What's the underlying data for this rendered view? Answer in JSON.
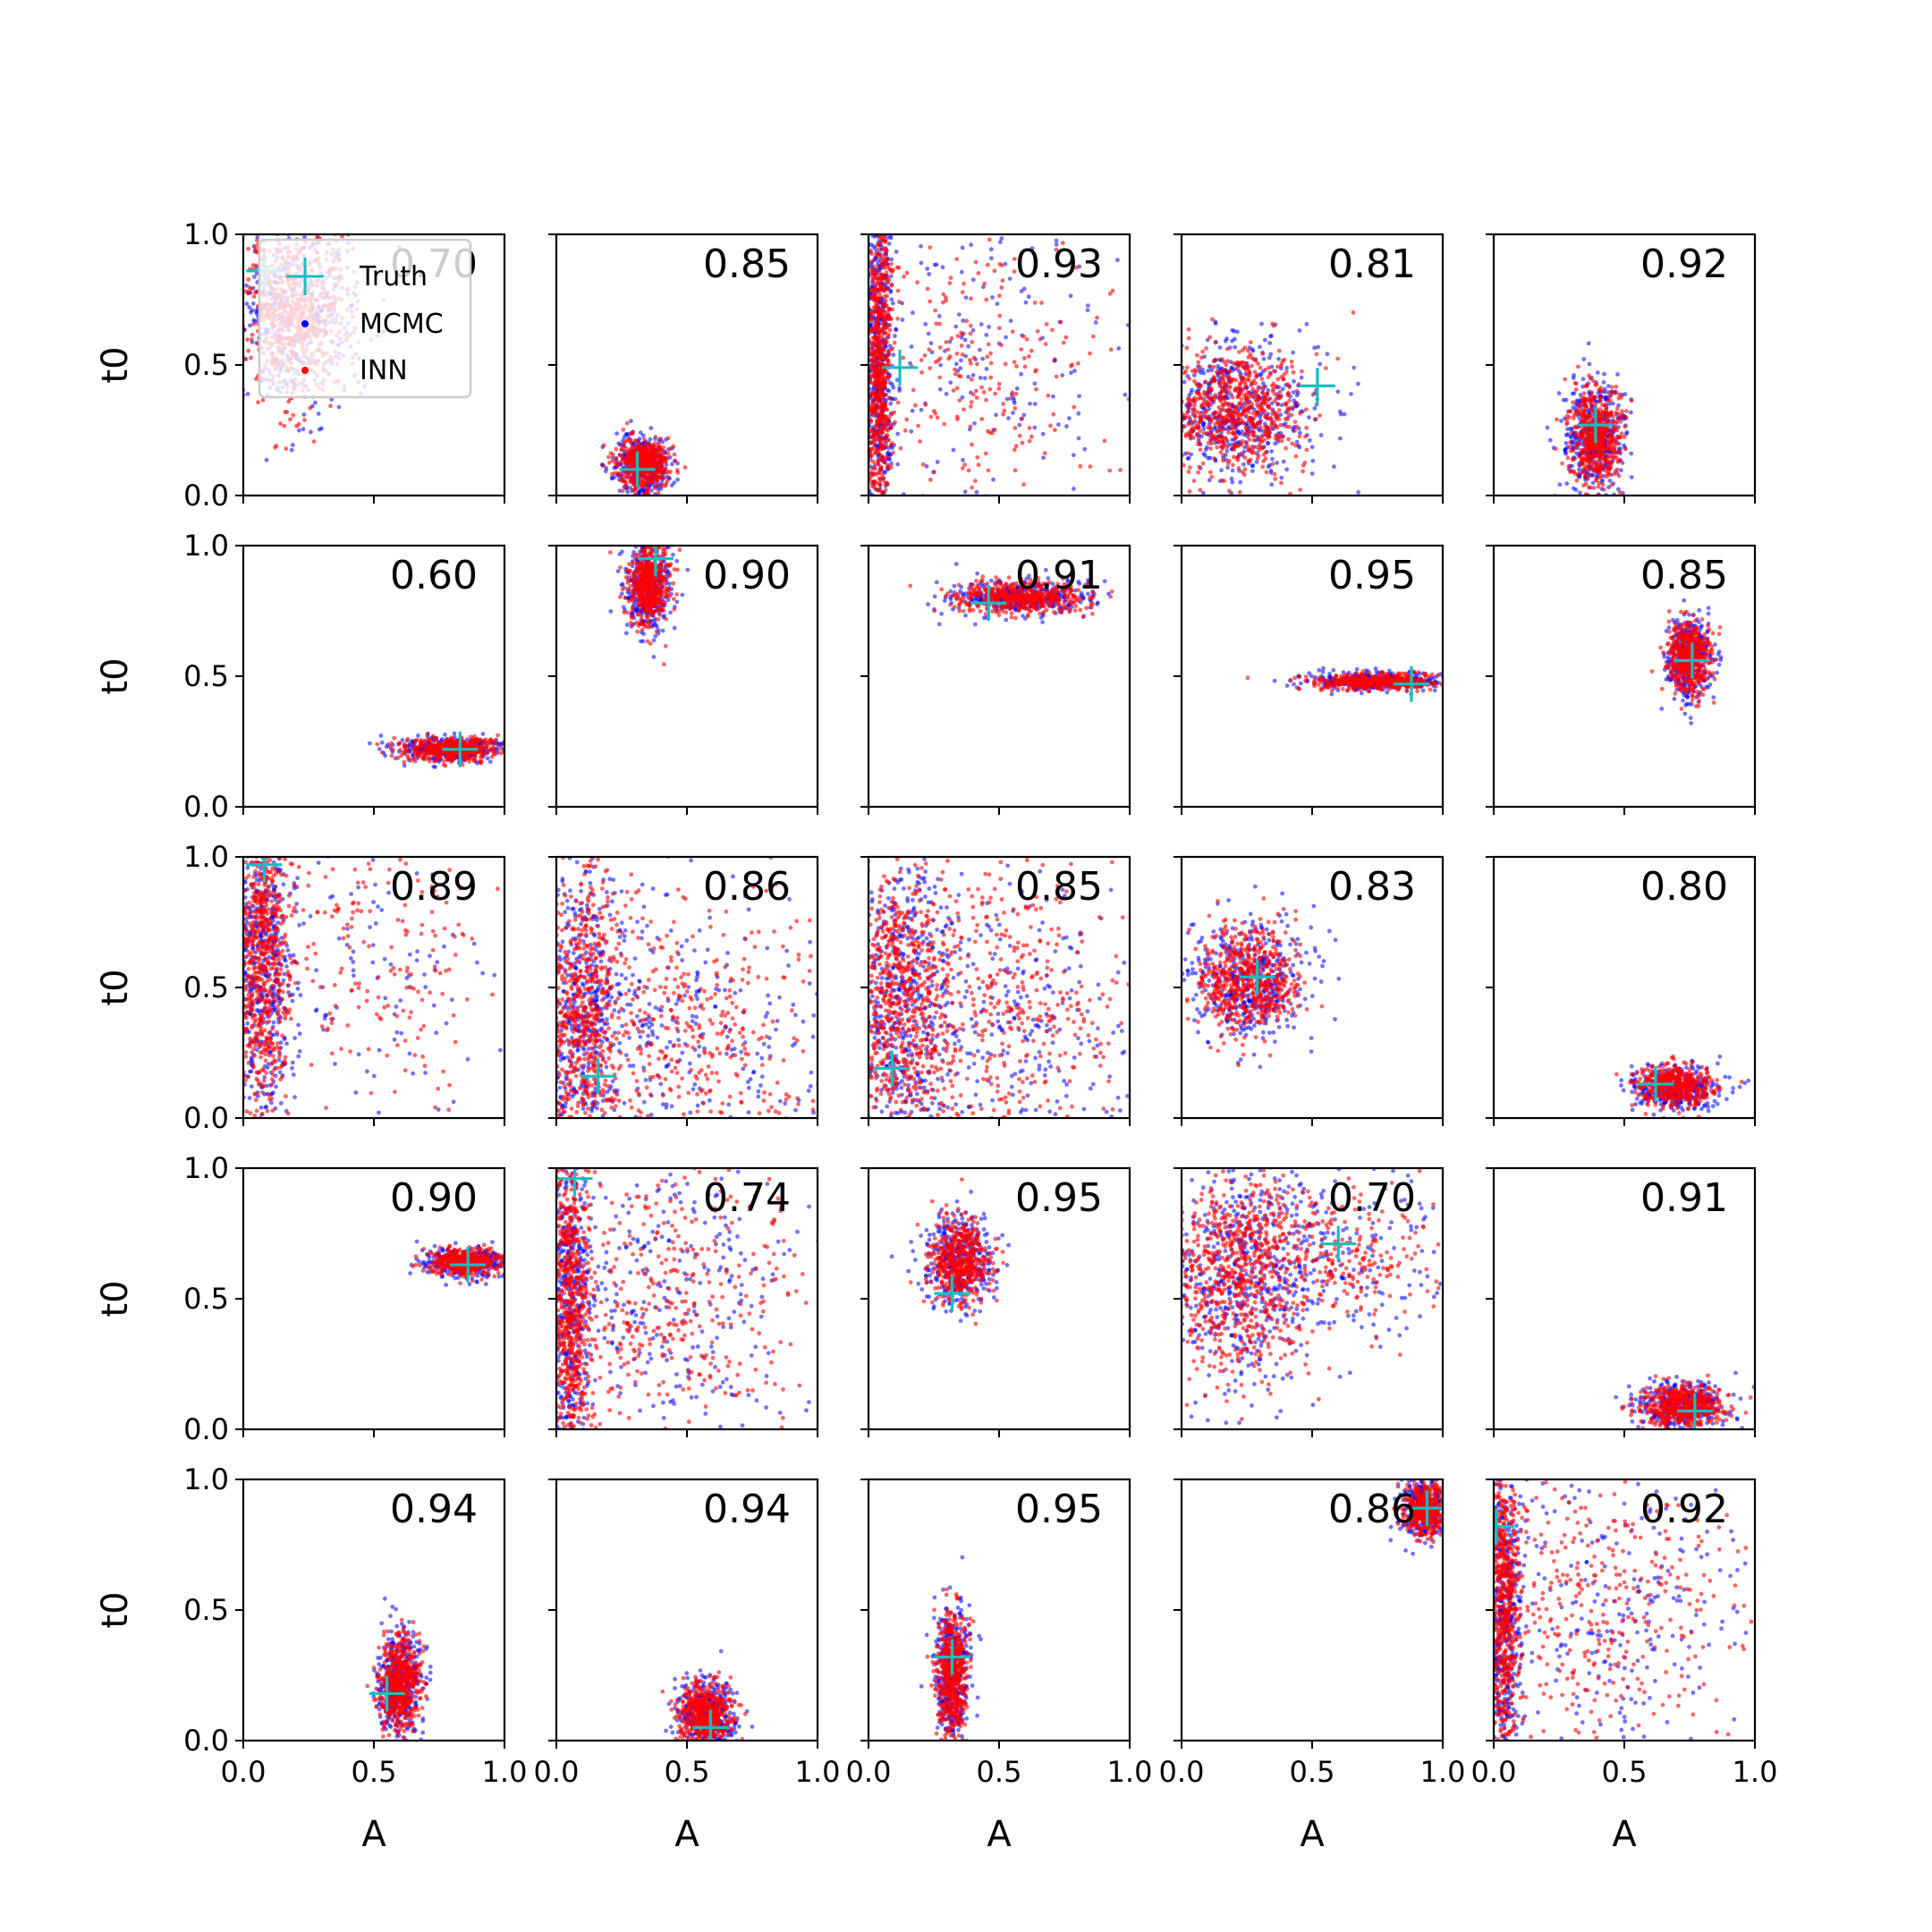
{
  "colors": {
    "mcmc": "#0000ff",
    "inn": "#ff0000",
    "truth": "#17bebe"
  },
  "legend": {
    "placement": "upper-left of first panel",
    "entries": [
      {
        "label": "Truth",
        "marker": "plus",
        "color": "#17bebe"
      },
      {
        "label": "MCMC",
        "marker": "dot",
        "color": "#0000ff"
      },
      {
        "label": "INN",
        "marker": "dot",
        "color": "#ff0000"
      }
    ]
  },
  "chart_data": {
    "type": "scatter",
    "title": "",
    "xlabel": "A",
    "ylabel": "t0",
    "xlim": [
      0.0,
      1.0
    ],
    "ylim": [
      0.0,
      1.0
    ],
    "xticks": [
      "0.0",
      "0.5",
      "1.0"
    ],
    "yticks": [
      "0.0",
      "0.5",
      "1.0"
    ],
    "grid": false,
    "layout": {
      "rows": 5,
      "cols": 5
    },
    "series_names": [
      "MCMC",
      "INN",
      "Truth"
    ],
    "panels": [
      {
        "row": 0,
        "col": 0,
        "score": "0.70",
        "truth": [
          0.08,
          0.86
        ],
        "clusters": [
          {
            "cx": 0.2,
            "cy": 0.7,
            "sx": 0.1,
            "sy": 0.18,
            "n": 650
          }
        ]
      },
      {
        "row": 0,
        "col": 1,
        "score": "0.85",
        "truth": [
          0.31,
          0.1
        ],
        "clusters": [
          {
            "cx": 0.33,
            "cy": 0.12,
            "sx": 0.05,
            "sy": 0.05,
            "n": 500
          }
        ]
      },
      {
        "row": 0,
        "col": 2,
        "score": "0.93",
        "truth": [
          0.12,
          0.49
        ],
        "clusters": [
          {
            "cx": 0.04,
            "cy": 0.5,
            "sx": 0.025,
            "sy": 0.3,
            "n": 700
          },
          {
            "cx": 0.4,
            "cy": 0.5,
            "sx": 0.25,
            "sy": 0.3,
            "n": 250
          }
        ]
      },
      {
        "row": 0,
        "col": 3,
        "score": "0.81",
        "truth": [
          0.52,
          0.42
        ],
        "clusters": [
          {
            "cx": 0.2,
            "cy": 0.33,
            "sx": 0.14,
            "sy": 0.12,
            "n": 700
          }
        ]
      },
      {
        "row": 0,
        "col": 4,
        "score": "0.92",
        "truth": [
          0.39,
          0.27
        ],
        "clusters": [
          {
            "cx": 0.39,
            "cy": 0.22,
            "sx": 0.05,
            "sy": 0.1,
            "n": 550
          }
        ]
      },
      {
        "row": 1,
        "col": 0,
        "score": "0.60",
        "truth": [
          0.83,
          0.22
        ],
        "clusters": [
          {
            "cx": 0.8,
            "cy": 0.22,
            "sx": 0.1,
            "sy": 0.022,
            "n": 450
          }
        ]
      },
      {
        "row": 1,
        "col": 1,
        "score": "0.90",
        "truth": [
          0.38,
          0.95
        ],
        "clusters": [
          {
            "cx": 0.35,
            "cy": 0.85,
            "sx": 0.04,
            "sy": 0.08,
            "n": 500
          }
        ]
      },
      {
        "row": 1,
        "col": 2,
        "score": "0.91",
        "truth": [
          0.46,
          0.78
        ],
        "clusters": [
          {
            "cx": 0.58,
            "cy": 0.8,
            "sx": 0.12,
            "sy": 0.03,
            "n": 500
          }
        ]
      },
      {
        "row": 1,
        "col": 3,
        "score": "0.95",
        "truth": [
          0.88,
          0.47
        ],
        "clusters": [
          {
            "cx": 0.74,
            "cy": 0.48,
            "sx": 0.12,
            "sy": 0.015,
            "n": 450
          }
        ]
      },
      {
        "row": 1,
        "col": 4,
        "score": "0.85",
        "truth": [
          0.76,
          0.56
        ],
        "clusters": [
          {
            "cx": 0.75,
            "cy": 0.57,
            "sx": 0.04,
            "sy": 0.07,
            "n": 500
          }
        ]
      },
      {
        "row": 2,
        "col": 0,
        "score": "0.89",
        "truth": [
          0.08,
          0.97
        ],
        "clusters": [
          {
            "cx": 0.07,
            "cy": 0.6,
            "sx": 0.05,
            "sy": 0.3,
            "n": 700
          },
          {
            "cx": 0.5,
            "cy": 0.6,
            "sx": 0.25,
            "sy": 0.3,
            "n": 200
          }
        ]
      },
      {
        "row": 2,
        "col": 1,
        "score": "0.86",
        "truth": [
          0.16,
          0.16
        ],
        "clusters": [
          {
            "cx": 0.1,
            "cy": 0.4,
            "sx": 0.08,
            "sy": 0.3,
            "n": 650
          },
          {
            "cx": 0.5,
            "cy": 0.3,
            "sx": 0.25,
            "sy": 0.25,
            "n": 400
          }
        ]
      },
      {
        "row": 2,
        "col": 2,
        "score": "0.85",
        "truth": [
          0.09,
          0.19
        ],
        "clusters": [
          {
            "cx": 0.12,
            "cy": 0.45,
            "sx": 0.1,
            "sy": 0.3,
            "n": 700
          },
          {
            "cx": 0.5,
            "cy": 0.4,
            "sx": 0.25,
            "sy": 0.3,
            "n": 450
          }
        ]
      },
      {
        "row": 2,
        "col": 3,
        "score": "0.83",
        "truth": [
          0.29,
          0.54
        ],
        "clusters": [
          {
            "cx": 0.25,
            "cy": 0.53,
            "sx": 0.1,
            "sy": 0.1,
            "n": 600
          }
        ]
      },
      {
        "row": 2,
        "col": 4,
        "score": "0.80",
        "truth": [
          0.62,
          0.13
        ],
        "clusters": [
          {
            "cx": 0.7,
            "cy": 0.12,
            "sx": 0.07,
            "sy": 0.04,
            "n": 450
          }
        ]
      },
      {
        "row": 3,
        "col": 0,
        "score": "0.90",
        "truth": [
          0.86,
          0.63
        ],
        "clusters": [
          {
            "cx": 0.85,
            "cy": 0.64,
            "sx": 0.07,
            "sy": 0.025,
            "n": 450
          }
        ]
      },
      {
        "row": 3,
        "col": 1,
        "score": "0.74",
        "truth": [
          0.07,
          0.96
        ],
        "clusters": [
          {
            "cx": 0.05,
            "cy": 0.5,
            "sx": 0.04,
            "sy": 0.3,
            "n": 650
          },
          {
            "cx": 0.45,
            "cy": 0.5,
            "sx": 0.25,
            "sy": 0.3,
            "n": 400
          }
        ]
      },
      {
        "row": 3,
        "col": 2,
        "score": "0.95",
        "truth": [
          0.32,
          0.52
        ],
        "clusters": [
          {
            "cx": 0.35,
            "cy": 0.65,
            "sx": 0.06,
            "sy": 0.08,
            "n": 500
          }
        ]
      },
      {
        "row": 3,
        "col": 3,
        "score": "0.70",
        "truth": [
          0.6,
          0.71
        ],
        "clusters": [
          {
            "cx": 0.2,
            "cy": 0.6,
            "sx": 0.15,
            "sy": 0.2,
            "n": 700
          },
          {
            "cx": 0.6,
            "cy": 0.65,
            "sx": 0.2,
            "sy": 0.15,
            "n": 250
          }
        ]
      },
      {
        "row": 3,
        "col": 4,
        "score": "0.91",
        "truth": [
          0.77,
          0.07
        ],
        "clusters": [
          {
            "cx": 0.72,
            "cy": 0.09,
            "sx": 0.08,
            "sy": 0.04,
            "n": 500
          }
        ]
      },
      {
        "row": 4,
        "col": 0,
        "score": "0.94",
        "truth": [
          0.55,
          0.18
        ],
        "clusters": [
          {
            "cx": 0.6,
            "cy": 0.22,
            "sx": 0.04,
            "sy": 0.1,
            "n": 550
          }
        ]
      },
      {
        "row": 4,
        "col": 1,
        "score": "0.94",
        "truth": [
          0.59,
          0.05
        ],
        "clusters": [
          {
            "cx": 0.57,
            "cy": 0.1,
            "sx": 0.05,
            "sy": 0.06,
            "n": 500
          }
        ]
      },
      {
        "row": 4,
        "col": 2,
        "score": "0.95",
        "truth": [
          0.32,
          0.32
        ],
        "clusters": [
          {
            "cx": 0.32,
            "cy": 0.25,
            "sx": 0.03,
            "sy": 0.12,
            "n": 550
          }
        ]
      },
      {
        "row": 4,
        "col": 3,
        "score": "0.86",
        "truth": [
          0.94,
          0.89
        ],
        "clusters": [
          {
            "cx": 0.93,
            "cy": 0.88,
            "sx": 0.04,
            "sy": 0.05,
            "n": 400
          }
        ]
      },
      {
        "row": 4,
        "col": 4,
        "score": "0.92",
        "truth": [
          0.01,
          0.82
        ],
        "clusters": [
          {
            "cx": 0.04,
            "cy": 0.5,
            "sx": 0.03,
            "sy": 0.3,
            "n": 650
          },
          {
            "cx": 0.45,
            "cy": 0.5,
            "sx": 0.25,
            "sy": 0.3,
            "n": 350
          }
        ]
      }
    ]
  }
}
